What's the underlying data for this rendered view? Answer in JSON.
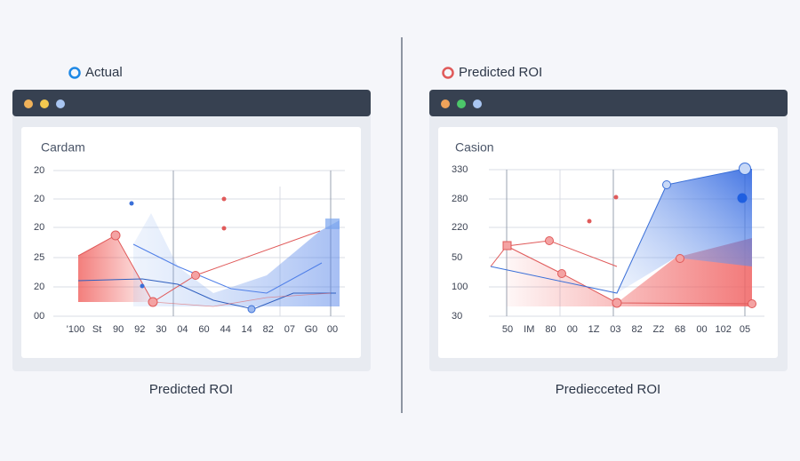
{
  "panels": [
    {
      "legend": "Actual",
      "title": "Cardam",
      "y_labels": [
        "20",
        "20",
        "20",
        "25",
        "20",
        "00"
      ],
      "x_labels": [
        "'100",
        "St",
        "90",
        "92",
        "30",
        "04",
        "60",
        "44",
        "14",
        "82",
        "07",
        "G0",
        "00"
      ],
      "caption": "Predicted ROI"
    },
    {
      "legend": "Predicted ROI",
      "title": "Casion",
      "y_labels": [
        "330",
        "280",
        "220",
        "50",
        "100",
        "30"
      ],
      "x_labels": [
        "50",
        "IM",
        "80",
        "00",
        "1Z",
        "03",
        "82",
        "Z2",
        "68",
        "00",
        "102",
        "05"
      ],
      "caption": "Prediecceted ROI"
    }
  ]
}
